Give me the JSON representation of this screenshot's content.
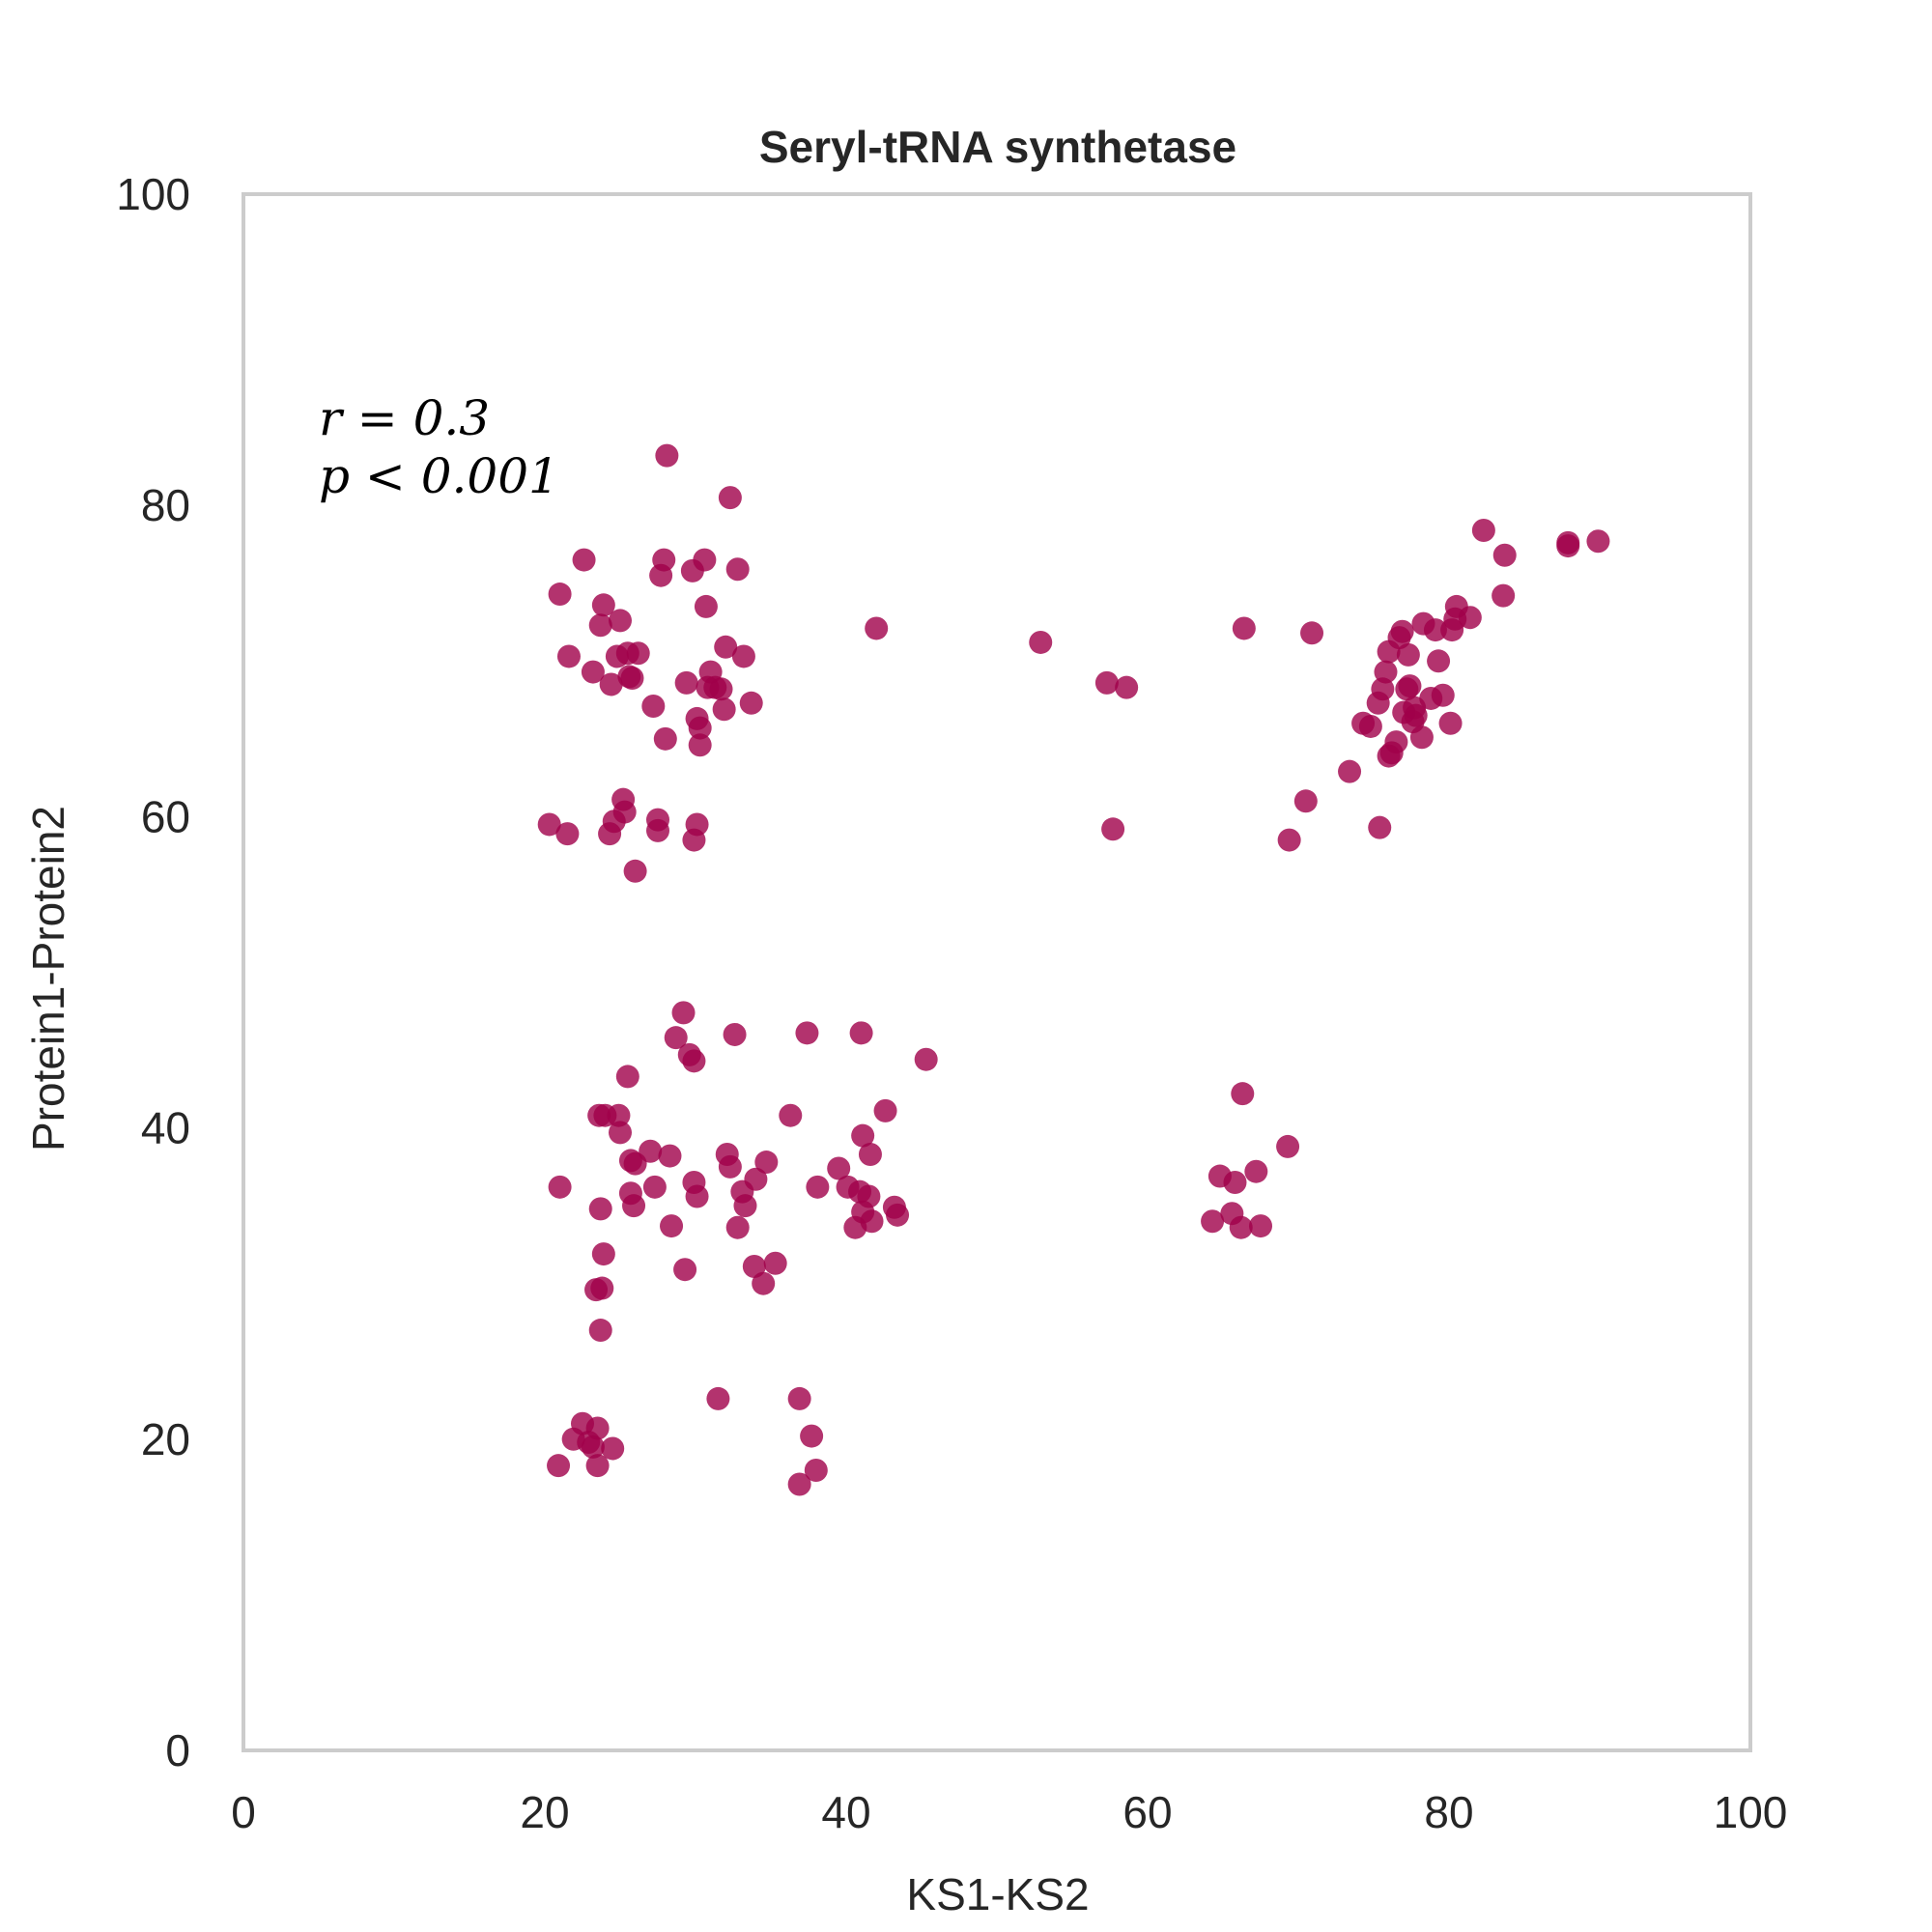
{
  "chart_data": {
    "type": "scatter",
    "title": "Seryl-tRNA synthetase",
    "xlabel": "KS1-KS2",
    "ylabel": "Protein1-Protein2",
    "xlim": [
      0,
      100
    ],
    "ylim": [
      0,
      100
    ],
    "xticks": [
      "0",
      "20",
      "40",
      "60",
      "80",
      "100"
    ],
    "yticks": [
      "0",
      "20",
      "40",
      "60",
      "80",
      "100"
    ],
    "grid": false,
    "annotation": {
      "r_text": "r = 0.3",
      "p_text": "p < 0.001"
    },
    "marker_color": "#A0004A",
    "frame_color": "#CCCCCC",
    "series": [
      {
        "points": [
          [
            20.3,
            59.5
          ],
          [
            21.0,
            74.3
          ],
          [
            21.6,
            70.3
          ],
          [
            21.5,
            58.9
          ],
          [
            22.6,
            76.5
          ],
          [
            23.2,
            69.3
          ],
          [
            23.7,
            72.3
          ],
          [
            23.9,
            73.6
          ],
          [
            24.3,
            58.9
          ],
          [
            24.4,
            68.5
          ],
          [
            24.6,
            59.7
          ],
          [
            24.8,
            70.3
          ],
          [
            25.0,
            72.6
          ],
          [
            25.2,
            61.1
          ],
          [
            25.3,
            60.3
          ],
          [
            25.5,
            70.5
          ],
          [
            25.6,
            69.0
          ],
          [
            25.8,
            68.9
          ],
          [
            26.2,
            70.5
          ],
          [
            26.0,
            56.5
          ],
          [
            27.2,
            67.1
          ],
          [
            27.5,
            59.8
          ],
          [
            27.5,
            59.1
          ],
          [
            27.7,
            75.5
          ],
          [
            27.9,
            76.5
          ],
          [
            28.0,
            65.0
          ],
          [
            28.1,
            83.2
          ],
          [
            29.4,
            68.6
          ],
          [
            29.8,
            75.8
          ],
          [
            29.9,
            58.5
          ],
          [
            30.1,
            59.5
          ],
          [
            30.1,
            66.3
          ],
          [
            30.3,
            64.6
          ],
          [
            30.3,
            65.7
          ],
          [
            30.6,
            76.5
          ],
          [
            30.7,
            73.5
          ],
          [
            30.8,
            68.3
          ],
          [
            31.0,
            69.3
          ],
          [
            31.3,
            68.3
          ],
          [
            31.7,
            68.2
          ],
          [
            31.9,
            66.9
          ],
          [
            32.0,
            70.9
          ],
          [
            32.3,
            80.5
          ],
          [
            32.8,
            75.9
          ],
          [
            33.2,
            70.3
          ],
          [
            33.7,
            67.3
          ],
          [
            42.0,
            72.1
          ],
          [
            52.9,
            71.2
          ],
          [
            57.3,
            68.6
          ],
          [
            57.7,
            59.2
          ],
          [
            58.6,
            68.3
          ],
          [
            66.4,
            72.1
          ],
          [
            69.4,
            58.5
          ],
          [
            70.5,
            61.0
          ],
          [
            70.9,
            71.8
          ],
          [
            73.4,
            62.9
          ],
          [
            74.3,
            66.0
          ],
          [
            74.8,
            65.8
          ],
          [
            75.3,
            67.3
          ],
          [
            75.4,
            59.3
          ],
          [
            75.6,
            68.2
          ],
          [
            75.8,
            69.3
          ],
          [
            76.0,
            70.6
          ],
          [
            76.0,
            63.9
          ],
          [
            76.2,
            64.1
          ],
          [
            76.5,
            64.8
          ],
          [
            76.7,
            71.5
          ],
          [
            76.9,
            71.9
          ],
          [
            77.0,
            66.7
          ],
          [
            77.2,
            68.2
          ],
          [
            77.3,
            70.4
          ],
          [
            77.4,
            68.4
          ],
          [
            77.6,
            66.1
          ],
          [
            77.7,
            67.0
          ],
          [
            77.8,
            66.5
          ],
          [
            78.2,
            65.1
          ],
          [
            78.3,
            72.4
          ],
          [
            78.8,
            67.6
          ],
          [
            79.1,
            72.0
          ],
          [
            79.3,
            70.0
          ],
          [
            79.6,
            67.8
          ],
          [
            80.1,
            66.0
          ],
          [
            80.2,
            72.0
          ],
          [
            80.4,
            72.7
          ],
          [
            80.5,
            73.5
          ],
          [
            81.4,
            72.8
          ],
          [
            82.3,
            78.4
          ],
          [
            83.6,
            74.2
          ],
          [
            83.7,
            76.8
          ],
          [
            87.9,
            77.6
          ],
          [
            87.9,
            77.4
          ],
          [
            89.9,
            77.7
          ],
          [
            20.9,
            18.3
          ],
          [
            21.0,
            36.2
          ],
          [
            21.9,
            20.0
          ],
          [
            22.5,
            21.0
          ],
          [
            22.9,
            19.8
          ],
          [
            23.2,
            19.5
          ],
          [
            23.4,
            29.6
          ],
          [
            23.5,
            18.3
          ],
          [
            23.5,
            20.7
          ],
          [
            23.6,
            40.8
          ],
          [
            23.7,
            27.0
          ],
          [
            23.7,
            34.8
          ],
          [
            23.8,
            29.7
          ],
          [
            23.9,
            31.9
          ],
          [
            24.0,
            40.8
          ],
          [
            24.5,
            19.4
          ],
          [
            24.9,
            40.8
          ],
          [
            25.0,
            39.7
          ],
          [
            25.5,
            43.3
          ],
          [
            25.7,
            35.8
          ],
          [
            25.7,
            37.9
          ],
          [
            25.9,
            35.0
          ],
          [
            26.0,
            37.7
          ],
          [
            27.0,
            38.5
          ],
          [
            27.3,
            36.2
          ],
          [
            28.3,
            38.2
          ],
          [
            28.4,
            33.7
          ],
          [
            28.7,
            45.8
          ],
          [
            29.2,
            47.4
          ],
          [
            29.3,
            30.9
          ],
          [
            29.6,
            44.7
          ],
          [
            29.9,
            44.3
          ],
          [
            29.9,
            36.5
          ],
          [
            30.1,
            35.6
          ],
          [
            31.5,
            22.6
          ],
          [
            32.1,
            38.3
          ],
          [
            32.3,
            37.5
          ],
          [
            32.6,
            46.0
          ],
          [
            32.8,
            33.6
          ],
          [
            33.1,
            35.9
          ],
          [
            33.3,
            35.0
          ],
          [
            33.9,
            31.1
          ],
          [
            34.0,
            36.7
          ],
          [
            34.5,
            30.0
          ],
          [
            34.7,
            37.8
          ],
          [
            35.3,
            31.3
          ],
          [
            36.3,
            40.8
          ],
          [
            36.9,
            17.1
          ],
          [
            36.9,
            22.6
          ],
          [
            37.4,
            46.1
          ],
          [
            37.7,
            20.2
          ],
          [
            38.0,
            18.0
          ],
          [
            38.1,
            36.2
          ],
          [
            39.5,
            37.4
          ],
          [
            40.1,
            36.2
          ],
          [
            40.6,
            33.6
          ],
          [
            40.9,
            35.9
          ],
          [
            41.1,
            34.6
          ],
          [
            41.0,
            46.1
          ],
          [
            41.1,
            39.5
          ],
          [
            41.5,
            35.6
          ],
          [
            41.6,
            38.3
          ],
          [
            41.7,
            34.0
          ],
          [
            42.6,
            41.1
          ],
          [
            43.2,
            34.9
          ],
          [
            43.4,
            34.4
          ],
          [
            45.3,
            44.4
          ],
          [
            64.3,
            34.0
          ],
          [
            64.8,
            36.9
          ],
          [
            65.6,
            34.5
          ],
          [
            65.8,
            36.5
          ],
          [
            66.2,
            33.6
          ],
          [
            66.3,
            42.2
          ],
          [
            67.2,
            37.2
          ],
          [
            67.5,
            33.7
          ],
          [
            69.3,
            38.8
          ]
        ]
      }
    ]
  }
}
